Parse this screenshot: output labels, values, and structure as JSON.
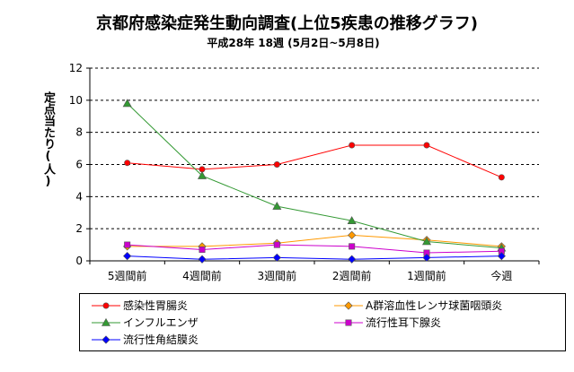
{
  "title": "京都府感染症発生動向調査(上位5疾患の推移グラフ)",
  "subtitle": "平成28年 18週 (5月2日~5月8日)",
  "chart_data": {
    "type": "line",
    "title": "京都府感染症発生動向調査(上位5疾患の推移グラフ)",
    "subtitle": "平成28年 18週 (5月2日~5月8日)",
    "ylabel": "定点当たり(人)",
    "xlabel": "",
    "categories": [
      "5週間前",
      "4週間前",
      "3週間前",
      "2週間前",
      "1週間前",
      "今週"
    ],
    "ylim": [
      0,
      12
    ],
    "yticks": [
      0,
      2,
      4,
      6,
      8,
      10,
      12
    ],
    "grid": "horizontal-dashed",
    "legend_position": "bottom",
    "series": [
      {
        "name": "感染性胃腸炎",
        "color": "#ff0000",
        "marker": "circle",
        "values": [
          6.1,
          5.7,
          6.0,
          7.2,
          7.2,
          5.2
        ]
      },
      {
        "name": "A群溶血性レンサ球菌咽頭炎",
        "color": "#ff9900",
        "marker": "diamond",
        "values": [
          0.9,
          0.9,
          1.1,
          1.6,
          1.3,
          0.9
        ]
      },
      {
        "name": "インフルエンザ",
        "color": "#339933",
        "marker": "triangle",
        "values": [
          9.8,
          5.3,
          3.4,
          2.5,
          1.2,
          0.8
        ]
      },
      {
        "name": "流行性耳下腺炎",
        "color": "#cc00cc",
        "marker": "square",
        "values": [
          1.0,
          0.7,
          1.0,
          0.9,
          0.5,
          0.6
        ]
      },
      {
        "name": "流行性角結膜炎",
        "color": "#0000ff",
        "marker": "diamond",
        "values": [
          0.3,
          0.1,
          0.2,
          0.1,
          0.2,
          0.3
        ]
      }
    ]
  }
}
